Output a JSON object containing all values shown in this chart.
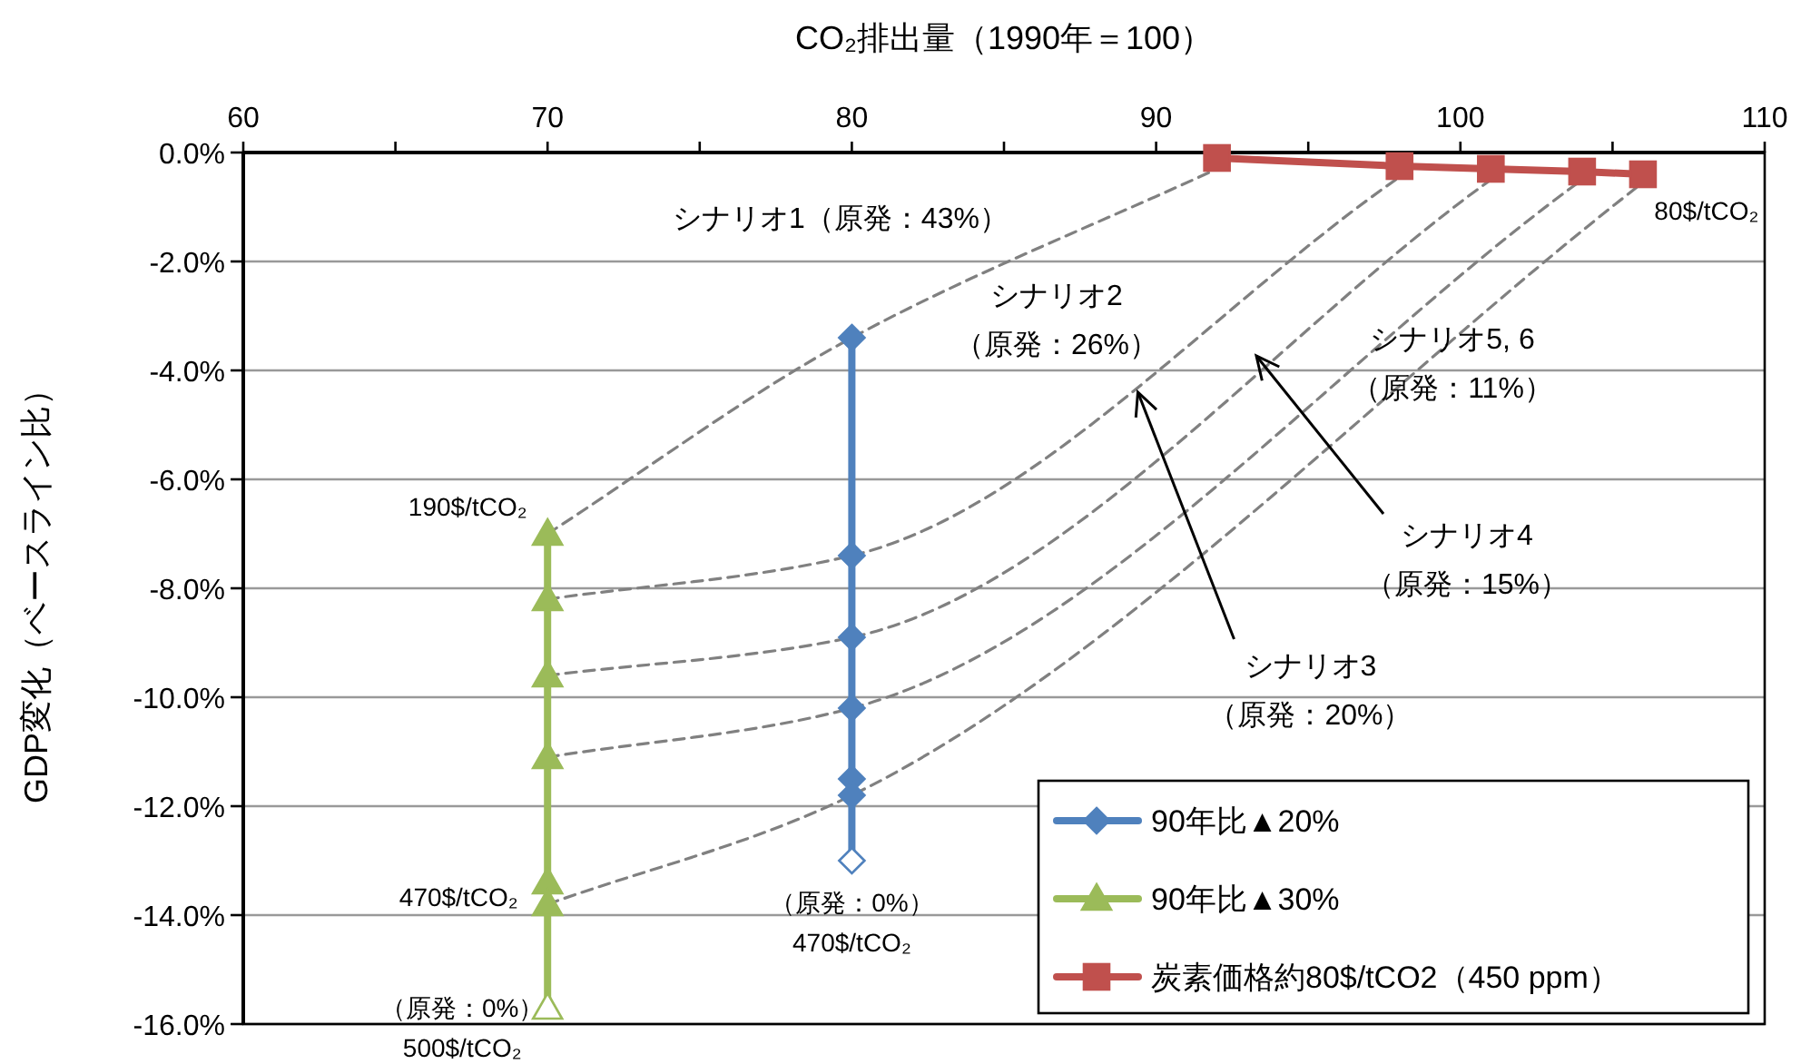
{
  "chart_data": {
    "type": "line",
    "xlabel": "CO₂排出量（1990年＝100）",
    "ylabel": "GDP変化（ベースライン比）",
    "xlim": [
      60,
      110
    ],
    "xticks": [
      60,
      {
        "value": 65,
        "label": null
      },
      70,
      {
        "value": 75,
        "label": null
      },
      80,
      {
        "value": 85,
        "label": null
      },
      90,
      {
        "value": 95,
        "label": null
      },
      100,
      {
        "value": 105,
        "label": null
      },
      110
    ],
    "ylim": [
      -16,
      0
    ],
    "yticks": [
      {
        "value": 0,
        "label": "0.0%"
      },
      {
        "value": -2,
        "label": "-2.0%"
      },
      {
        "value": -4,
        "label": "-4.0%"
      },
      {
        "value": -6,
        "label": "-6.0%"
      },
      {
        "value": -8,
        "label": "-8.0%"
      },
      {
        "value": -10,
        "label": "-10.0%"
      },
      {
        "value": -12,
        "label": "-12.0%"
      },
      {
        "value": -14,
        "label": "-14.0%"
      },
      {
        "value": -16,
        "label": "-16.0%"
      }
    ],
    "grid": "y",
    "legend": "bottom right",
    "series": [
      {
        "color": "#808080",
        "line_style": "dashed",
        "marker": "none",
        "x": [
          70,
          80,
          92
        ],
        "values": [
          -7.0,
          -3.4,
          -0.3
        ]
      },
      {
        "color": "#808080",
        "line_style": "dashed",
        "marker": "none",
        "x": [
          70,
          80,
          98
        ],
        "values": [
          -8.2,
          -7.4,
          -0.45
        ]
      },
      {
        "color": "#808080",
        "line_style": "dashed",
        "marker": "none",
        "x": [
          70,
          80,
          101
        ],
        "values": [
          -9.6,
          -8.9,
          -0.5
        ]
      },
      {
        "color": "#808080",
        "line_style": "dashed",
        "marker": "none",
        "x": [
          70,
          80,
          104
        ],
        "values": [
          -11.1,
          -10.2,
          -0.5
        ]
      },
      {
        "color": "#808080",
        "line_style": "dashed",
        "marker": "none",
        "x": [
          70,
          80,
          106
        ],
        "values": [
          -13.8,
          -11.8,
          -0.55
        ]
      },
      {
        "name": "90年比▲20%",
        "color": "#4f81bd",
        "line_style": "solid",
        "marker": "diamond",
        "x": [
          80,
          80,
          80,
          80,
          80,
          80,
          80
        ],
        "values": [
          -3.4,
          -7.4,
          -8.9,
          -10.2,
          -11.5,
          -11.8,
          -13.0
        ],
        "colors": [
          "#4f81bd",
          "#4f81bd",
          "#4f81bd",
          "#4f81bd",
          "#4f81bd",
          "#4f81bd",
          "#ffffff"
        ]
      },
      {
        "name": "90年比▲30%",
        "color": "#9bbb59",
        "line_style": "solid",
        "marker": "triangle",
        "x": [
          70,
          70,
          70,
          70,
          70,
          70,
          70
        ],
        "values": [
          -7.0,
          -8.2,
          -9.6,
          -11.1,
          -13.4,
          -13.8,
          -15.7
        ],
        "colors": [
          "#9bbb59",
          "#9bbb59",
          "#9bbb59",
          "#9bbb59",
          "#9bbb59",
          "#9bbb59",
          "#ffffff"
        ]
      },
      {
        "name": "炭素価格約80$/tCO2（450 ppm）",
        "color": "#c0504d",
        "line_style": "solid",
        "marker": "square",
        "x": [
          92,
          98,
          101,
          104,
          106
        ],
        "values": [
          -0.1,
          -0.25,
          -0.3,
          -0.35,
          -0.4
        ]
      }
    ],
    "annotations": [
      "シナリオ1（原発：43%）",
      "シナリオ2\n（原発：26%）",
      "シナリオ5, 6\n（原発：11%）",
      "シナリオ4\n（原発：15%）",
      {
        "text": "シナリオ3\n（原発：20%）",
        "x": 89.4,
        "y": -4.4
      },
      {
        "text": "190$/tCO₂",
        "x": 70,
        "y": -7.0
      },
      {
        "text": "470$/tCO₂",
        "x": 70,
        "y": -13.8
      },
      {
        "text": "（原発：0%）\n470$/tCO₂",
        "x": 80,
        "y": -13.0
      },
      {
        "text": "（原発：0%）\n500$/tCO₂",
        "x": 70,
        "y": -15.7
      },
      {
        "text": "80$/tCO₂",
        "x": 106,
        "y": -0.4
      }
    ]
  }
}
